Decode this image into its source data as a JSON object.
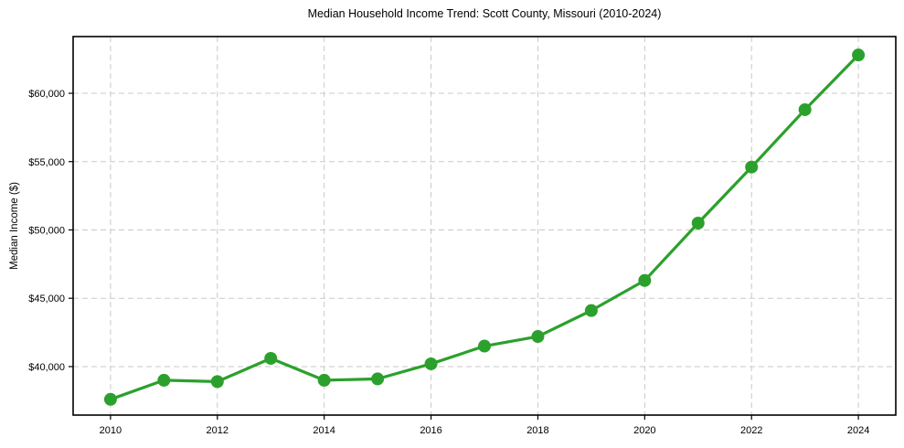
{
  "chart_data": {
    "type": "line",
    "title": "Median Household Income Trend: Scott County, Missouri (2010-2024)",
    "xlabel": "",
    "ylabel": "Median Income ($)",
    "x": [
      2010,
      2011,
      2012,
      2013,
      2014,
      2015,
      2016,
      2017,
      2018,
      2019,
      2020,
      2021,
      2022,
      2023,
      2024
    ],
    "values": [
      37600,
      39000,
      38900,
      40600,
      39000,
      39100,
      40200,
      41500,
      42200,
      44100,
      46300,
      50500,
      54600,
      58800,
      62800
    ],
    "x_ticks": [
      2010,
      2012,
      2014,
      2016,
      2018,
      2020,
      2022,
      2024
    ],
    "y_ticks": [
      40000,
      45000,
      50000,
      55000,
      60000
    ],
    "y_tick_prefix": "$",
    "xlim": [
      2009.3,
      2024.7
    ],
    "ylim": [
      36450,
      64150
    ],
    "grid": true,
    "grid_style": "dashed",
    "legend": "none",
    "line_color": "#2ca02c",
    "marker": "circle",
    "marker_color": "#2ca02c",
    "grid_color": "#c9c9c9",
    "axis_color": "#000000",
    "text_color": "#000000",
    "background_color": "#ffffff"
  }
}
